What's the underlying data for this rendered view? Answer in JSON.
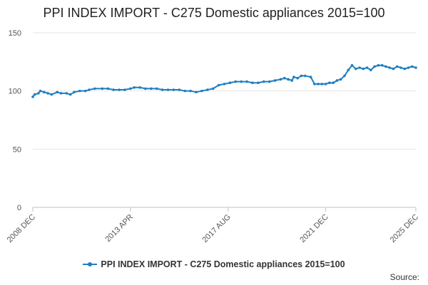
{
  "chart_data": {
    "type": "line",
    "title": "PPI INDEX IMPORT - C275 Domestic appliances 2015=100",
    "xlabel": "",
    "ylabel": "",
    "ylim": [
      0,
      150
    ],
    "yticks": [
      0,
      50,
      100,
      150
    ],
    "xlim": [
      "2008-12",
      "2025-12"
    ],
    "xticks": [
      "2008 DEC",
      "2013 APR",
      "2017 AUG",
      "2021 DEC",
      "2025 DEC"
    ],
    "grid": true,
    "legend": "bottom-center",
    "series": [
      {
        "name": "PPI INDEX IMPORT - C275 Domestic appliances 2015=100",
        "color": "#1f7fc1",
        "points": [
          [
            "2008-12",
            95
          ],
          [
            "2009-01",
            97
          ],
          [
            "2009-03",
            98
          ],
          [
            "2009-04",
            100
          ],
          [
            "2009-06",
            99
          ],
          [
            "2009-08",
            98
          ],
          [
            "2009-10",
            97
          ],
          [
            "2010-01",
            99
          ],
          [
            "2010-03",
            98
          ],
          [
            "2010-06",
            98
          ],
          [
            "2010-08",
            97
          ],
          [
            "2010-10",
            99
          ],
          [
            "2011-01",
            100
          ],
          [
            "2011-04",
            100
          ],
          [
            "2011-06",
            101
          ],
          [
            "2011-09",
            102
          ],
          [
            "2012-01",
            102
          ],
          [
            "2012-04",
            102
          ],
          [
            "2012-07",
            101
          ],
          [
            "2012-10",
            101
          ],
          [
            "2013-01",
            101
          ],
          [
            "2013-04",
            102
          ],
          [
            "2013-06",
            103
          ],
          [
            "2013-09",
            103
          ],
          [
            "2013-12",
            102
          ],
          [
            "2014-03",
            102
          ],
          [
            "2014-06",
            102
          ],
          [
            "2014-09",
            101
          ],
          [
            "2014-12",
            101
          ],
          [
            "2015-03",
            101
          ],
          [
            "2015-06",
            101
          ],
          [
            "2015-09",
            100
          ],
          [
            "2015-12",
            100
          ],
          [
            "2016-03",
            99
          ],
          [
            "2016-06",
            100
          ],
          [
            "2016-09",
            101
          ],
          [
            "2016-12",
            102
          ],
          [
            "2017-03",
            105
          ],
          [
            "2017-06",
            106
          ],
          [
            "2017-09",
            107
          ],
          [
            "2017-12",
            108
          ],
          [
            "2018-03",
            108
          ],
          [
            "2018-06",
            108
          ],
          [
            "2018-09",
            107
          ],
          [
            "2018-12",
            107
          ],
          [
            "2019-03",
            108
          ],
          [
            "2019-06",
            108
          ],
          [
            "2019-09",
            109
          ],
          [
            "2019-12",
            110
          ],
          [
            "2020-02",
            111
          ],
          [
            "2020-04",
            110
          ],
          [
            "2020-06",
            109
          ],
          [
            "2020-07",
            112
          ],
          [
            "2020-09",
            111
          ],
          [
            "2020-11",
            113
          ],
          [
            "2021-01",
            113
          ],
          [
            "2021-04",
            112
          ],
          [
            "2021-06",
            106
          ],
          [
            "2021-08",
            106
          ],
          [
            "2021-10",
            106
          ],
          [
            "2021-12",
            106
          ],
          [
            "2022-02",
            107
          ],
          [
            "2022-04",
            107
          ],
          [
            "2022-06",
            109
          ],
          [
            "2022-08",
            110
          ],
          [
            "2022-10",
            113
          ],
          [
            "2022-12",
            118
          ],
          [
            "2023-02",
            122
          ],
          [
            "2023-04",
            119
          ],
          [
            "2023-06",
            120
          ],
          [
            "2023-08",
            119
          ],
          [
            "2023-10",
            120
          ],
          [
            "2023-12",
            118
          ],
          [
            "2024-02",
            121
          ],
          [
            "2024-04",
            122
          ],
          [
            "2024-06",
            122
          ],
          [
            "2024-08",
            121
          ],
          [
            "2024-10",
            120
          ],
          [
            "2024-12",
            119
          ],
          [
            "2025-02",
            121
          ],
          [
            "2025-04",
            120
          ],
          [
            "2025-06",
            119
          ],
          [
            "2025-08",
            120
          ],
          [
            "2025-10",
            121
          ],
          [
            "2025-12",
            120
          ]
        ]
      }
    ]
  },
  "footer": {
    "source_label": "Source:"
  }
}
